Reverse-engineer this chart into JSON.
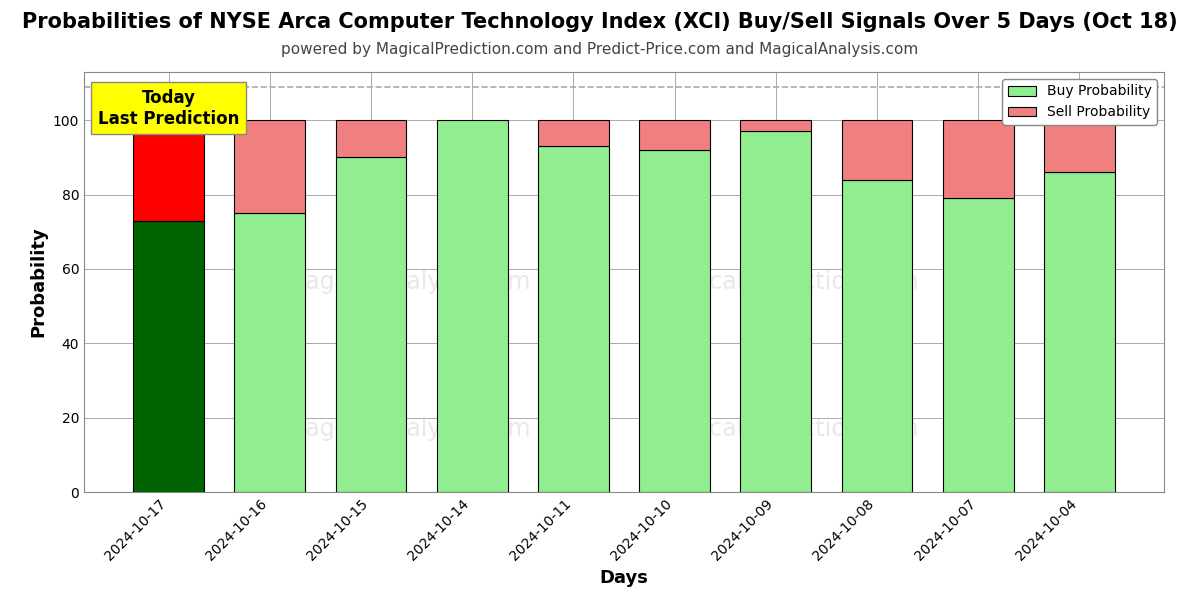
{
  "title": "Probabilities of NYSE Arca Computer Technology Index (XCI) Buy/Sell Signals Over 5 Days (Oct 18)",
  "subtitle": "powered by MagicalPrediction.com and Predict-Price.com and MagicalAnalysis.com",
  "xlabel": "Days",
  "ylabel": "Probability",
  "dates": [
    "2024-10-17",
    "2024-10-16",
    "2024-10-15",
    "2024-10-14",
    "2024-10-11",
    "2024-10-10",
    "2024-10-09",
    "2024-10-08",
    "2024-10-07",
    "2024-10-04"
  ],
  "buy_values": [
    73,
    75,
    90,
    100,
    93,
    92,
    97,
    84,
    79,
    86
  ],
  "sell_values": [
    27,
    25,
    10,
    0,
    7,
    8,
    3,
    16,
    21,
    14
  ],
  "today_buy_color": "#006400",
  "today_sell_color": "#FF0000",
  "buy_color": "#90EE90",
  "sell_color": "#F08080",
  "bar_edgecolor": "#000000",
  "ylim": [
    0,
    113
  ],
  "yticks": [
    0,
    20,
    40,
    60,
    80,
    100
  ],
  "dashed_line_y": 109,
  "annotation_text": "Today\nLast Prediction",
  "annotation_bg": "#FFFF00",
  "legend_buy_label": "Buy Probability",
  "legend_sell_label": "Sell Probability",
  "title_fontsize": 15,
  "subtitle_fontsize": 11,
  "axis_label_fontsize": 13,
  "tick_fontsize": 10,
  "bg_color": "#FFFFFF",
  "plot_bg_color": "#FFFFFF",
  "grid_color": "#AAAAAA",
  "bar_width": 0.7
}
